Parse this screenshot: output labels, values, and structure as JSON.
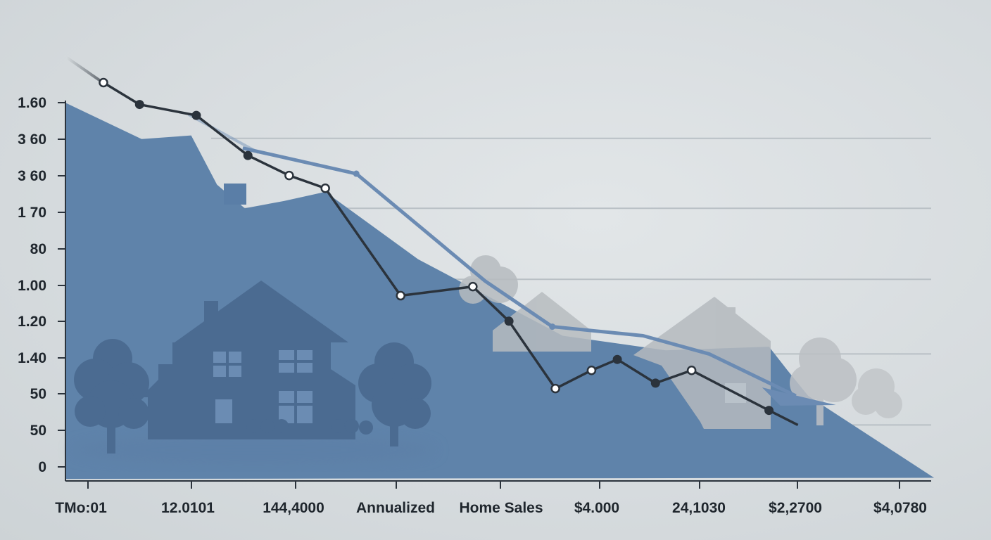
{
  "chart_data": {
    "type": "line",
    "title": "",
    "xlabel": "",
    "ylabel": "",
    "grid": true,
    "y_tick_labels": [
      "1.60",
      "3 60",
      "3 60",
      "1 70",
      "80",
      "1.00",
      "1.20",
      "1.40",
      "50",
      "50",
      "0"
    ],
    "x_tick_labels": [
      "TMo:01",
      "12.0101",
      "144,4000",
      "Annualized",
      "Home Sales",
      "$4.000",
      "24,1030",
      "$2,2700",
      "$4,0780"
    ],
    "y_scale": "linear",
    "ylim": [
      0,
      10
    ],
    "xlim": [
      0,
      8
    ],
    "series": [
      {
        "role": "area",
        "color": "#5f83aa",
        "x": [
          -0.22,
          0.52,
          1.0,
          1.25,
          1.52,
          1.9,
          2.3,
          3.2,
          4.6,
          5.6,
          6.6,
          6.78,
          6.98,
          8.2
        ],
        "y": [
          10.0,
          9.0,
          9.1,
          7.75,
          7.1,
          7.3,
          7.55,
          5.7,
          3.6,
          3.2,
          3.3,
          2.65,
          1.95,
          -0.3
        ]
      },
      {
        "role": "trend",
        "color": "#6b8bb3",
        "x": [
          1.5,
          2.6,
          3.85,
          4.5,
          5.38,
          6.02,
          6.86
        ],
        "y": [
          8.75,
          8.05,
          5.1,
          3.85,
          3.6,
          3.1,
          1.95
        ]
      },
      {
        "role": "line",
        "color": "#2b333c",
        "x": [
          0.15,
          0.5,
          1.05,
          1.55,
          1.95,
          2.3,
          3.03,
          3.73,
          4.08,
          4.53,
          4.88,
          5.13,
          5.5,
          5.85,
          6.6,
          6.88
        ],
        "y": [
          10.55,
          9.95,
          9.65,
          8.55,
          8.0,
          7.65,
          4.7,
          4.95,
          4.0,
          2.15,
          2.65,
          2.95,
          2.3,
          2.65,
          1.55,
          1.15
        ],
        "hollow_markers": [
          0,
          4,
          5,
          6,
          7,
          9,
          10,
          13
        ],
        "filled_markers": [
          1,
          2,
          3,
          8,
          11,
          12,
          14
        ]
      }
    ]
  },
  "colors": {
    "axis": "#2b333c",
    "grid": "#b9c0c5",
    "silhouette_dark": "#4a6a90",
    "silhouette_grey": "#b6bbbf"
  }
}
